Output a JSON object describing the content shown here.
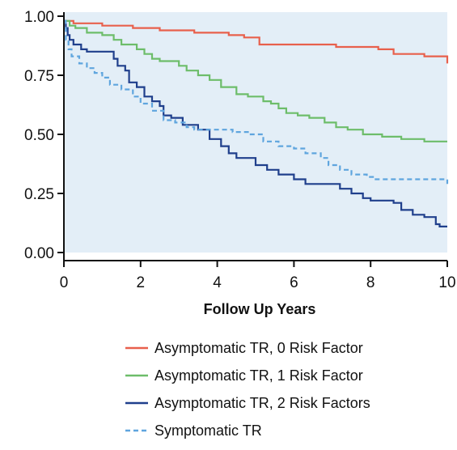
{
  "chart_data": {
    "type": "line",
    "title": "",
    "xlabel": "Follow Up Years",
    "ylabel": "",
    "xlim": [
      0,
      10
    ],
    "ylim": [
      0,
      1
    ],
    "x_ticks": [
      "0",
      "2",
      "4",
      "6",
      "8",
      "10"
    ],
    "y_ticks": [
      "0.00",
      "0.25",
      "0.50",
      "0.75",
      "1.00"
    ],
    "grid": false,
    "legend_position": "bottom",
    "background_color": "#e3eef7",
    "series": [
      {
        "name": "Asymptomatic TR, 0 Risk Factor",
        "color": "#e8604c",
        "dash": "solid",
        "points": [
          [
            0,
            0.98
          ],
          [
            0.1,
            0.98
          ],
          [
            0.25,
            0.97
          ],
          [
            1,
            0.96
          ],
          [
            1.8,
            0.95
          ],
          [
            2.5,
            0.94
          ],
          [
            3.4,
            0.93
          ],
          [
            4.3,
            0.92
          ],
          [
            4.7,
            0.91
          ],
          [
            5.1,
            0.88
          ],
          [
            5.5,
            0.88
          ],
          [
            7.1,
            0.87
          ],
          [
            7.5,
            0.87
          ],
          [
            8.2,
            0.86
          ],
          [
            8.6,
            0.84
          ],
          [
            9,
            0.84
          ],
          [
            9.4,
            0.83
          ],
          [
            9.9,
            0.83
          ],
          [
            10,
            0.8
          ]
        ]
      },
      {
        "name": "Asymptomatic TR, 1 Risk Factor",
        "color": "#6dbd6a",
        "dash": "solid",
        "points": [
          [
            0,
            0.98
          ],
          [
            0.05,
            0.98
          ],
          [
            0.15,
            0.96
          ],
          [
            0.3,
            0.95
          ],
          [
            0.6,
            0.93
          ],
          [
            1,
            0.92
          ],
          [
            1.3,
            0.9
          ],
          [
            1.5,
            0.88
          ],
          [
            1.9,
            0.86
          ],
          [
            2.1,
            0.84
          ],
          [
            2.3,
            0.82
          ],
          [
            2.5,
            0.81
          ],
          [
            3,
            0.79
          ],
          [
            3.2,
            0.77
          ],
          [
            3.5,
            0.75
          ],
          [
            3.8,
            0.73
          ],
          [
            4.1,
            0.7
          ],
          [
            4.5,
            0.67
          ],
          [
            4.8,
            0.66
          ],
          [
            5.2,
            0.64
          ],
          [
            5.4,
            0.63
          ],
          [
            5.6,
            0.61
          ],
          [
            5.8,
            0.59
          ],
          [
            6.1,
            0.58
          ],
          [
            6.4,
            0.57
          ],
          [
            6.8,
            0.55
          ],
          [
            7.1,
            0.53
          ],
          [
            7.4,
            0.52
          ],
          [
            7.8,
            0.5
          ],
          [
            8.3,
            0.49
          ],
          [
            8.8,
            0.48
          ],
          [
            9.4,
            0.47
          ],
          [
            10,
            0.47
          ]
        ]
      },
      {
        "name": "Asymptomatic TR, 2 Risk Factors",
        "color": "#1f3f8c",
        "dash": "solid",
        "points": [
          [
            0,
            0.98
          ],
          [
            0.05,
            0.95
          ],
          [
            0.1,
            0.92
          ],
          [
            0.15,
            0.9
          ],
          [
            0.25,
            0.88
          ],
          [
            0.45,
            0.86
          ],
          [
            0.6,
            0.85
          ],
          [
            1.1,
            0.85
          ],
          [
            1.3,
            0.82
          ],
          [
            1.4,
            0.79
          ],
          [
            1.6,
            0.77
          ],
          [
            1.7,
            0.72
          ],
          [
            1.9,
            0.7
          ],
          [
            2.1,
            0.66
          ],
          [
            2.3,
            0.64
          ],
          [
            2.5,
            0.62
          ],
          [
            2.6,
            0.58
          ],
          [
            2.8,
            0.57
          ],
          [
            3.1,
            0.54
          ],
          [
            3.5,
            0.52
          ],
          [
            3.8,
            0.48
          ],
          [
            4.1,
            0.45
          ],
          [
            4.3,
            0.42
          ],
          [
            4.5,
            0.4
          ],
          [
            5,
            0.37
          ],
          [
            5.3,
            0.35
          ],
          [
            5.6,
            0.33
          ],
          [
            6,
            0.31
          ],
          [
            6.3,
            0.29
          ],
          [
            7,
            0.29
          ],
          [
            7.2,
            0.27
          ],
          [
            7.5,
            0.25
          ],
          [
            7.8,
            0.23
          ],
          [
            8,
            0.22
          ],
          [
            8.6,
            0.21
          ],
          [
            8.8,
            0.18
          ],
          [
            9.1,
            0.16
          ],
          [
            9.4,
            0.15
          ],
          [
            9.7,
            0.12
          ],
          [
            9.8,
            0.11
          ],
          [
            10,
            0.11
          ]
        ]
      },
      {
        "name": "Symptomatic TR",
        "color": "#5fa5de",
        "dash": "dashed",
        "points": [
          [
            0,
            0.98
          ],
          [
            0.05,
            0.9
          ],
          [
            0.12,
            0.86
          ],
          [
            0.2,
            0.83
          ],
          [
            0.4,
            0.8
          ],
          [
            0.6,
            0.78
          ],
          [
            0.8,
            0.76
          ],
          [
            1,
            0.74
          ],
          [
            1.2,
            0.71
          ],
          [
            1.5,
            0.69
          ],
          [
            1.8,
            0.66
          ],
          [
            2,
            0.63
          ],
          [
            2.3,
            0.6
          ],
          [
            2.6,
            0.56
          ],
          [
            2.9,
            0.55
          ],
          [
            3.2,
            0.53
          ],
          [
            3.4,
            0.52
          ],
          [
            4,
            0.52
          ],
          [
            4.4,
            0.51
          ],
          [
            4.8,
            0.5
          ],
          [
            5.2,
            0.47
          ],
          [
            5.6,
            0.45
          ],
          [
            6,
            0.44
          ],
          [
            6.3,
            0.42
          ],
          [
            6.7,
            0.4
          ],
          [
            6.9,
            0.37
          ],
          [
            7.2,
            0.35
          ],
          [
            7.5,
            0.33
          ],
          [
            7.9,
            0.32
          ],
          [
            8.1,
            0.31
          ],
          [
            9,
            0.31
          ],
          [
            9.8,
            0.31
          ],
          [
            10,
            0.29
          ]
        ]
      }
    ]
  }
}
